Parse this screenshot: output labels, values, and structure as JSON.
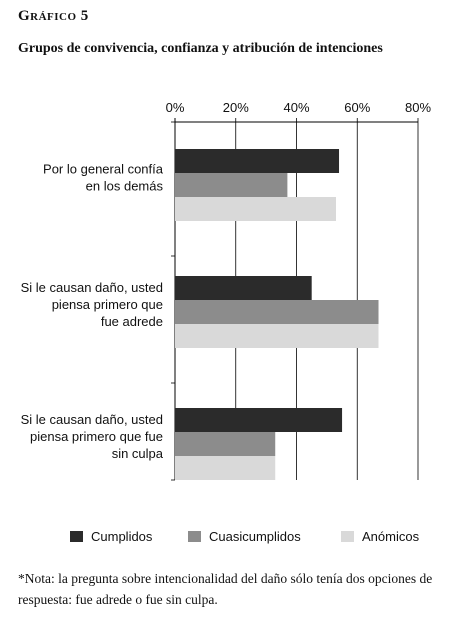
{
  "figure": {
    "label": "Gráfico 5",
    "title": "Grupos de convivencia, confianza y atribución de intenciones"
  },
  "chart_data": {
    "type": "bar",
    "orientation": "horizontal",
    "categories": [
      [
        "Por lo general confía",
        "en los demás"
      ],
      [
        "Si le causan daño, usted",
        "piensa primero que",
        "fue adrede"
      ],
      [
        "Si le causan daño, usted",
        "piensa primero que fue",
        "sin culpa"
      ]
    ],
    "series": [
      {
        "name": "Cumplidos",
        "values": [
          54,
          45,
          55
        ],
        "color": "#2b2b2b"
      },
      {
        "name": "Cuasicumplidos",
        "values": [
          37,
          67,
          33
        ],
        "color": "#8c8c8c"
      },
      {
        "name": "Anómicos",
        "values": [
          53,
          67,
          33
        ],
        "color": "#d9d9d9"
      }
    ],
    "xlim": [
      0,
      80
    ],
    "xticks": [
      0,
      20,
      40,
      60,
      80
    ],
    "tick_suffix": "%",
    "grid": true,
    "legend_position": "bottom"
  },
  "footnote": "*Nota: la pregunta sobre intencionalidad del daño sólo tenía dos opciones de respuesta: fue adrede o fue sin culpa."
}
